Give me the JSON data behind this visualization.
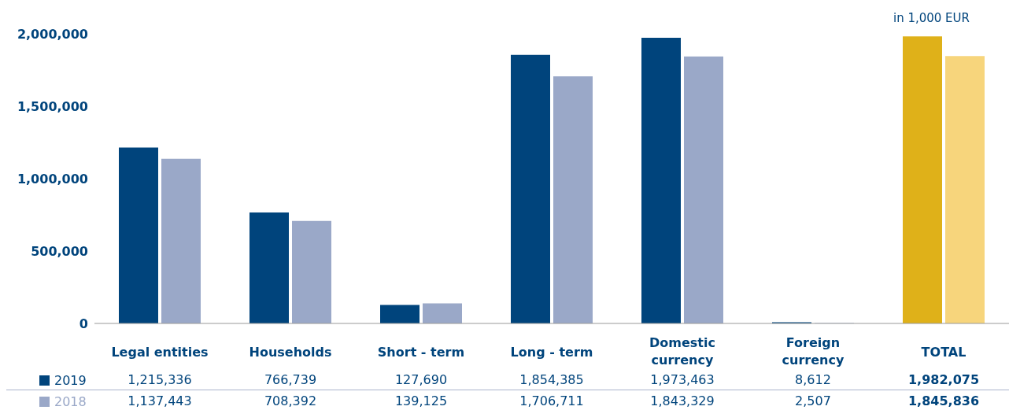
{
  "chart_data": {
    "type": "bar",
    "categories": [
      "Legal entities",
      "Households",
      "Short - term",
      "Long - term",
      "Domestic currency",
      "Foreign currency",
      "TOTAL"
    ],
    "series": [
      {
        "name": "2019",
        "color": "#00447c",
        "colors": [
          "#00447c",
          "#00447c",
          "#00447c",
          "#00447c",
          "#00447c",
          "#00447c",
          "#dfb119"
        ],
        "values": [
          1215336,
          766739,
          127690,
          1854385,
          1973463,
          8612,
          1982075
        ],
        "value_labels": [
          "1,215,336",
          "766,739",
          "127,690",
          "1,854,385",
          "1,973,463",
          "8,612",
          "1,982,075"
        ]
      },
      {
        "name": "2018",
        "color": "#9aa8c8",
        "colors": [
          "#9aa8c8",
          "#9aa8c8",
          "#9aa8c8",
          "#9aa8c8",
          "#9aa8c8",
          "#9aa8c8",
          "#f7d57c"
        ],
        "values": [
          1137443,
          708392,
          139125,
          1706711,
          1843329,
          2507,
          1845836
        ],
        "value_labels": [
          "1,137,443",
          "708,392",
          "139,125",
          "1,706,711",
          "1,843,329",
          "2,507",
          "1,845,836"
        ]
      }
    ],
    "ylim": [
      0,
      2000000
    ],
    "yticks": [
      0,
      {
        "value": 500000,
        "label": "500,000"
      },
      {
        "value": 1000000,
        "label": "1,000,000"
      },
      {
        "value": 1500000,
        "label": "1,500,000"
      },
      {
        "value": 2000000,
        "label": "2,000,000"
      }
    ],
    "grid": false,
    "legend": "bottom left",
    "annotations": [
      "in 1,000 EUR"
    ]
  }
}
